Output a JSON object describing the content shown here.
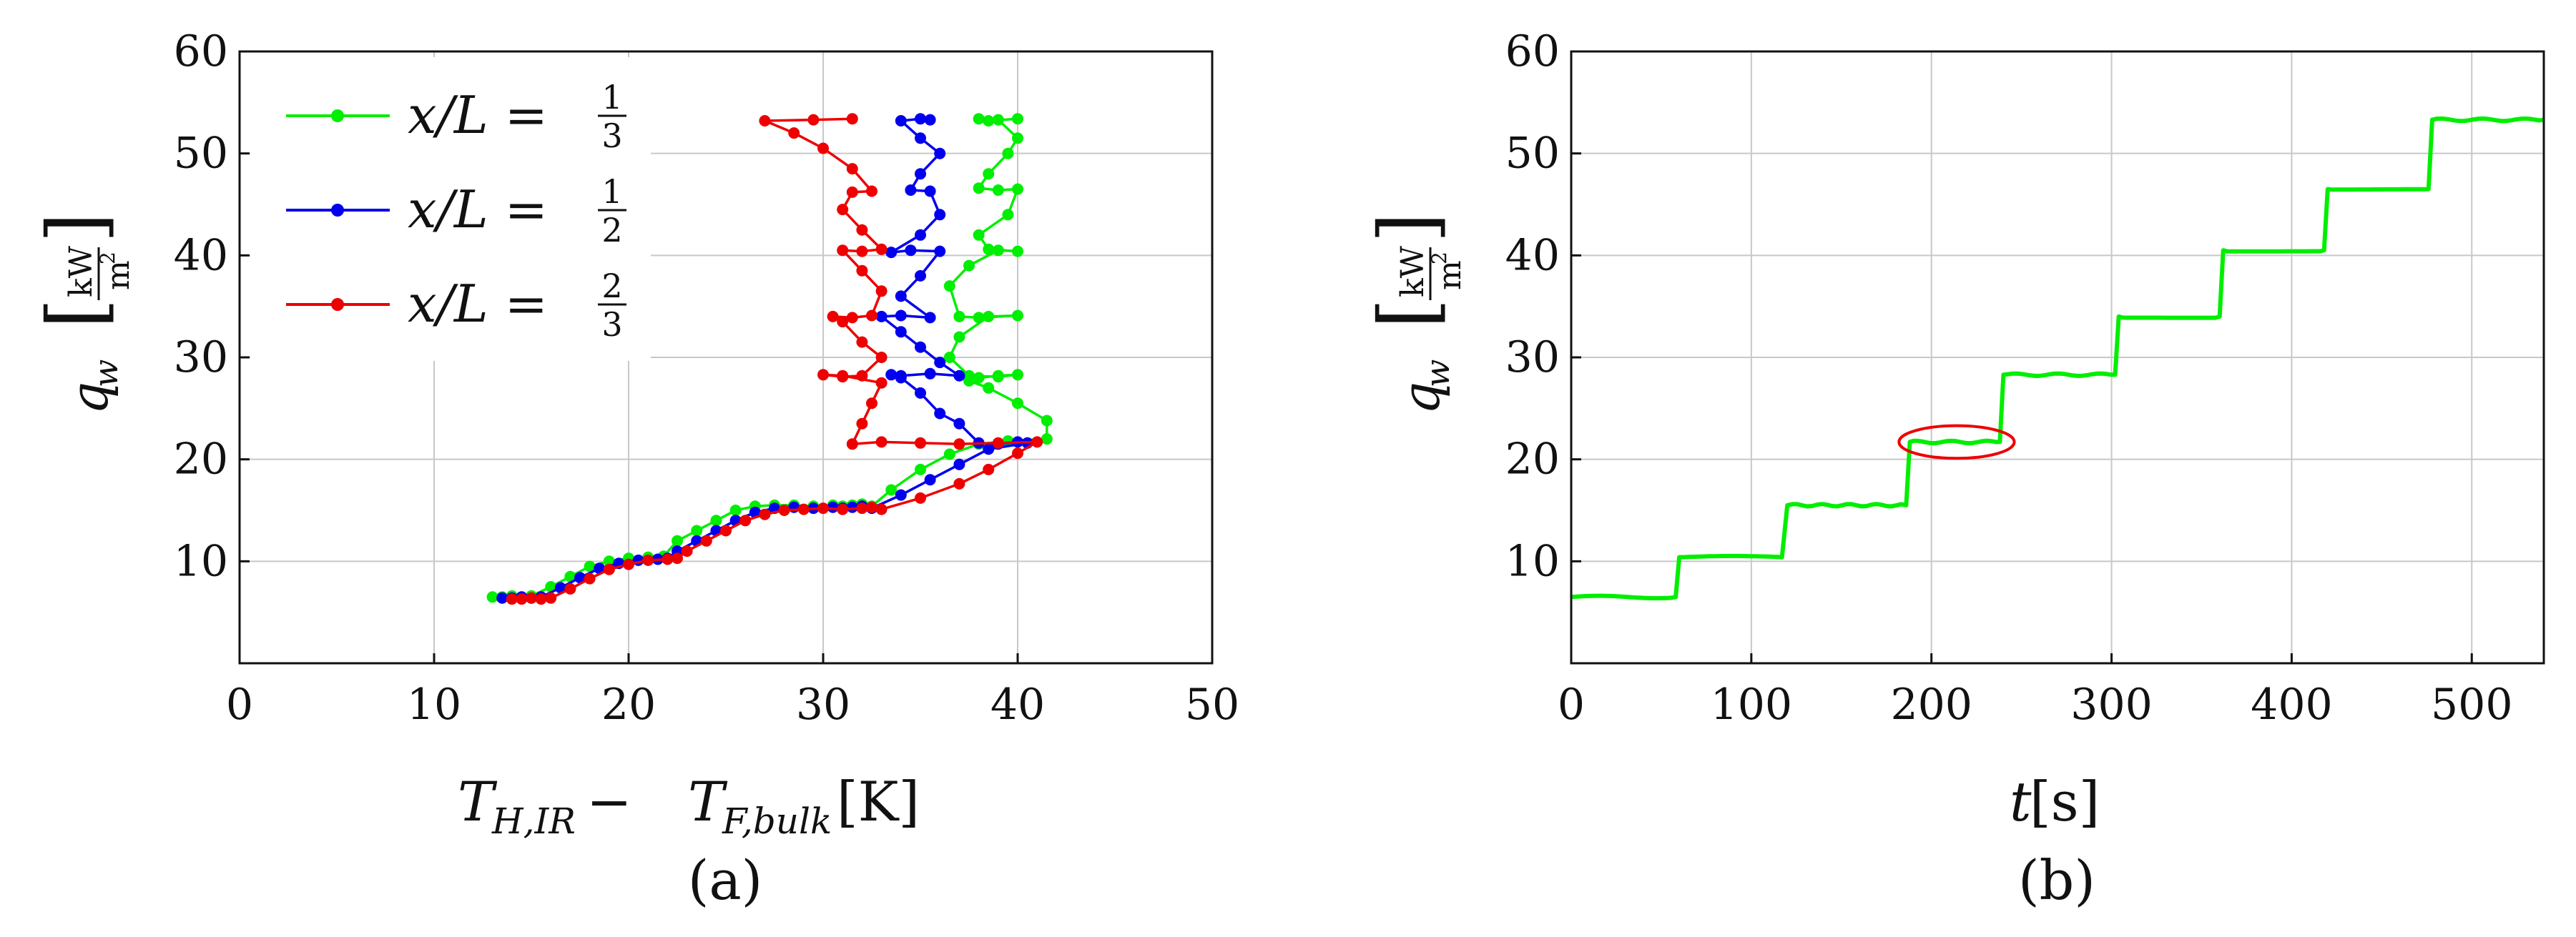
{
  "chart_data": [
    {
      "id": "a",
      "type": "line",
      "caption": "(a)",
      "xlabel": "T_{H,IR} − T_{F,bulk} [K]",
      "xlabel_parts": {
        "t1": "T",
        "s1": "H,IR",
        "op": " − ",
        "t2": "T",
        "s2": "F,bulk",
        "unit": " [K]"
      },
      "ylabel": "q_w [kW/m²]",
      "ylabel_parts": {
        "q": "q",
        "sub": "w",
        "num": "kW",
        "den": "m",
        "den_sup": "2"
      },
      "xlim": [
        0,
        50
      ],
      "ylim": [
        0,
        60
      ],
      "xticks": [
        "0",
        "10",
        "20",
        "30",
        "40",
        "50"
      ],
      "yticks": [
        "10",
        "20",
        "30",
        "40",
        "50",
        "60"
      ],
      "grid": true,
      "legend_position": "top-left",
      "series": [
        {
          "name": "x/L = 1/3",
          "legend_lhs": "x/L =",
          "legend_num": "1",
          "legend_den": "3",
          "color": "#00ee00",
          "x": [
            13,
            13.5,
            14,
            14.5,
            15,
            16,
            17,
            18,
            19,
            20,
            21,
            21.8,
            22.5,
            23.5,
            24.5,
            25.5,
            26.5,
            27.5,
            28.5,
            29.5,
            30.5,
            31,
            31.5,
            32,
            32.5,
            33.5,
            35,
            36.5,
            38,
            39.5,
            41.5,
            41.5,
            40,
            38.5,
            37.5,
            38,
            39,
            40,
            39,
            37.5,
            36.5,
            37,
            38.5,
            40,
            38,
            37,
            36.5,
            37.5,
            39,
            40,
            38.5,
            38,
            39.5,
            40,
            39,
            38,
            38.5,
            39.5,
            40,
            39,
            38,
            38.5,
            40
          ],
          "y": [
            6.5,
            6.5,
            6.6,
            6.5,
            6.6,
            7.5,
            8.5,
            9.5,
            10,
            10.3,
            10.4,
            10.5,
            12,
            13,
            14,
            15,
            15.4,
            15.5,
            15.5,
            15.4,
            15.5,
            15.4,
            15.5,
            15.6,
            15.4,
            17,
            19,
            20.5,
            21.5,
            21.8,
            22,
            23.8,
            25.5,
            27,
            27.7,
            28,
            28.2,
            28.3,
            28.1,
            28.2,
            30,
            32,
            34,
            34.1,
            33.9,
            34,
            37,
            39,
            40.5,
            40.4,
            40.6,
            42,
            44,
            46.5,
            46.4,
            46.6,
            48,
            50,
            51.5,
            53.3,
            53.4,
            53.2,
            53.4
          ]
        },
        {
          "name": "x/L = 1/2",
          "legend_lhs": "x/L =",
          "legend_num": "1",
          "legend_den": "2",
          "color": "#0000ee",
          "x": [
            13.5,
            14,
            14.5,
            15,
            15.5,
            16.5,
            17.5,
            18.5,
            19.5,
            20.5,
            21.5,
            22,
            22.5,
            23.5,
            24.5,
            25.5,
            26.5,
            27.5,
            28.5,
            29.5,
            30.5,
            31,
            31.5,
            32,
            32.5,
            34,
            35.5,
            37,
            38.5,
            40.5,
            40,
            39,
            38,
            37,
            36,
            35,
            34,
            33.5,
            34,
            35.5,
            37,
            36,
            35,
            34,
            33,
            34,
            35.5,
            34,
            35,
            36,
            34.5,
            33.5,
            35,
            36,
            35.5,
            34.5,
            35,
            36,
            35,
            34,
            35,
            35.5
          ],
          "y": [
            6.4,
            6.4,
            6.5,
            6.4,
            6.5,
            7.4,
            8.4,
            9.3,
            9.8,
            10.1,
            10.2,
            10.3,
            11,
            12,
            13,
            14,
            14.8,
            15.2,
            15.3,
            15.2,
            15.3,
            15.2,
            15.3,
            15.4,
            15.2,
            16.5,
            18,
            19.5,
            21,
            21.6,
            21.7,
            21.5,
            21.6,
            23.5,
            24.5,
            26.5,
            28,
            28.3,
            28.2,
            28.4,
            28.2,
            29.5,
            31,
            32.5,
            34,
            34.1,
            33.9,
            36,
            38,
            40.4,
            40.5,
            40.3,
            42,
            44,
            46.3,
            46.4,
            48,
            50,
            51.5,
            53.2,
            53.4,
            53.3
          ]
        },
        {
          "name": "x/L = 2/3",
          "legend_lhs": "x/L =",
          "legend_num": "2",
          "legend_den": "3",
          "color": "#ee0000",
          "x": [
            14,
            14.5,
            15,
            15.5,
            16,
            17,
            18,
            19,
            20,
            21,
            22,
            22.5,
            23,
            24,
            25,
            26,
            27,
            28,
            29,
            30,
            31,
            32,
            32.5,
            33,
            35,
            37,
            38.5,
            40,
            41,
            39,
            37,
            35,
            33,
            31.5,
            32,
            32.5,
            33,
            31,
            30,
            31,
            32,
            33,
            32,
            31,
            30.5,
            31.5,
            32.5,
            33,
            32,
            31,
            32,
            33,
            32,
            31,
            31.5,
            32.5,
            31.5,
            30,
            28.5,
            27,
            29.5,
            31.5
          ],
          "y": [
            6.3,
            6.3,
            6.4,
            6.3,
            6.4,
            7.3,
            8.3,
            9.2,
            9.7,
            10.1,
            10.2,
            10.3,
            11,
            12,
            13,
            14,
            14.6,
            15,
            15.1,
            15.2,
            15.1,
            15.2,
            15.3,
            15.1,
            16.2,
            17.6,
            19,
            20.6,
            21.7,
            21.6,
            21.5,
            21.6,
            21.7,
            21.5,
            23.5,
            25.5,
            27.5,
            28.2,
            28.3,
            28.1,
            28.2,
            30,
            31.5,
            33.5,
            34,
            33.9,
            34.1,
            36.5,
            38.5,
            40.5,
            40.4,
            40.6,
            42.5,
            44.5,
            46.2,
            46.3,
            48.5,
            50.5,
            52,
            53.2,
            53.3,
            53.4
          ]
        }
      ]
    },
    {
      "id": "b",
      "type": "line",
      "caption": "(b)",
      "xlabel": "t [s]",
      "xlabel_parts": {
        "t": "t",
        "unit": " [s]"
      },
      "ylabel": "q_w [kW/m²]",
      "xlim": [
        0,
        540
      ],
      "ylim": [
        0,
        60
      ],
      "xticks": [
        "0",
        "100",
        "200",
        "300",
        "400",
        "500"
      ],
      "yticks": [
        "10",
        "20",
        "30",
        "40",
        "50",
        "60"
      ],
      "grid": true,
      "series": [
        {
          "name": "q_w(t)",
          "color": "#00ee00",
          "steps": [
            {
              "t_start": 0,
              "t_end": 58,
              "value": 6.5
            },
            {
              "t_start": 60,
              "t_end": 117,
              "value": 10.4
            },
            {
              "t_start": 120,
              "t_end": 186,
              "value": 15.5
            },
            {
              "t_start": 188,
              "t_end": 238,
              "value": 21.7
            },
            {
              "t_start": 240,
              "t_end": 302,
              "value": 28.3
            },
            {
              "t_start": 304,
              "t_end": 360,
              "value": 34.0
            },
            {
              "t_start": 362,
              "t_end": 418,
              "value": 40.5
            },
            {
              "t_start": 420,
              "t_end": 476,
              "value": 46.5
            },
            {
              "t_start": 478,
              "t_end": 540,
              "value": 53.3
            }
          ]
        }
      ],
      "annotations": [
        {
          "type": "ellipse",
          "color": "#ee0000",
          "center": [
            214,
            21.7
          ],
          "radius": [
            32,
            1.6
          ]
        }
      ]
    }
  ]
}
